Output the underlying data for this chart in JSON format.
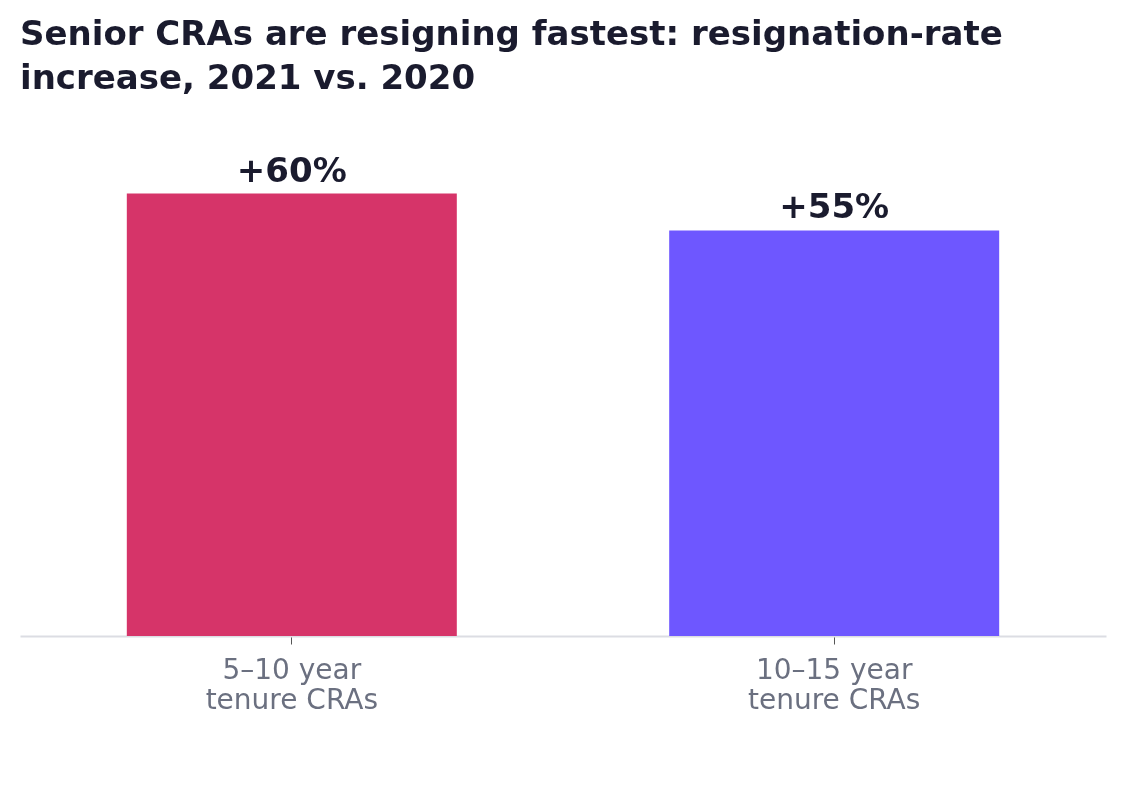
{
  "chart_data": {
    "type": "bar",
    "title": "Senior CRAs are resigning fastest: resignation-rate increase, 2021 vs. 2020",
    "categories": [
      "5–10 year tenure CRAs",
      "10–15 year tenure CRAs"
    ],
    "values": [
      60,
      55
    ],
    "colors": [
      "#d63469",
      "#6e57ff"
    ],
    "value_labels": [
      "+60%",
      "+55%"
    ]
  }
}
